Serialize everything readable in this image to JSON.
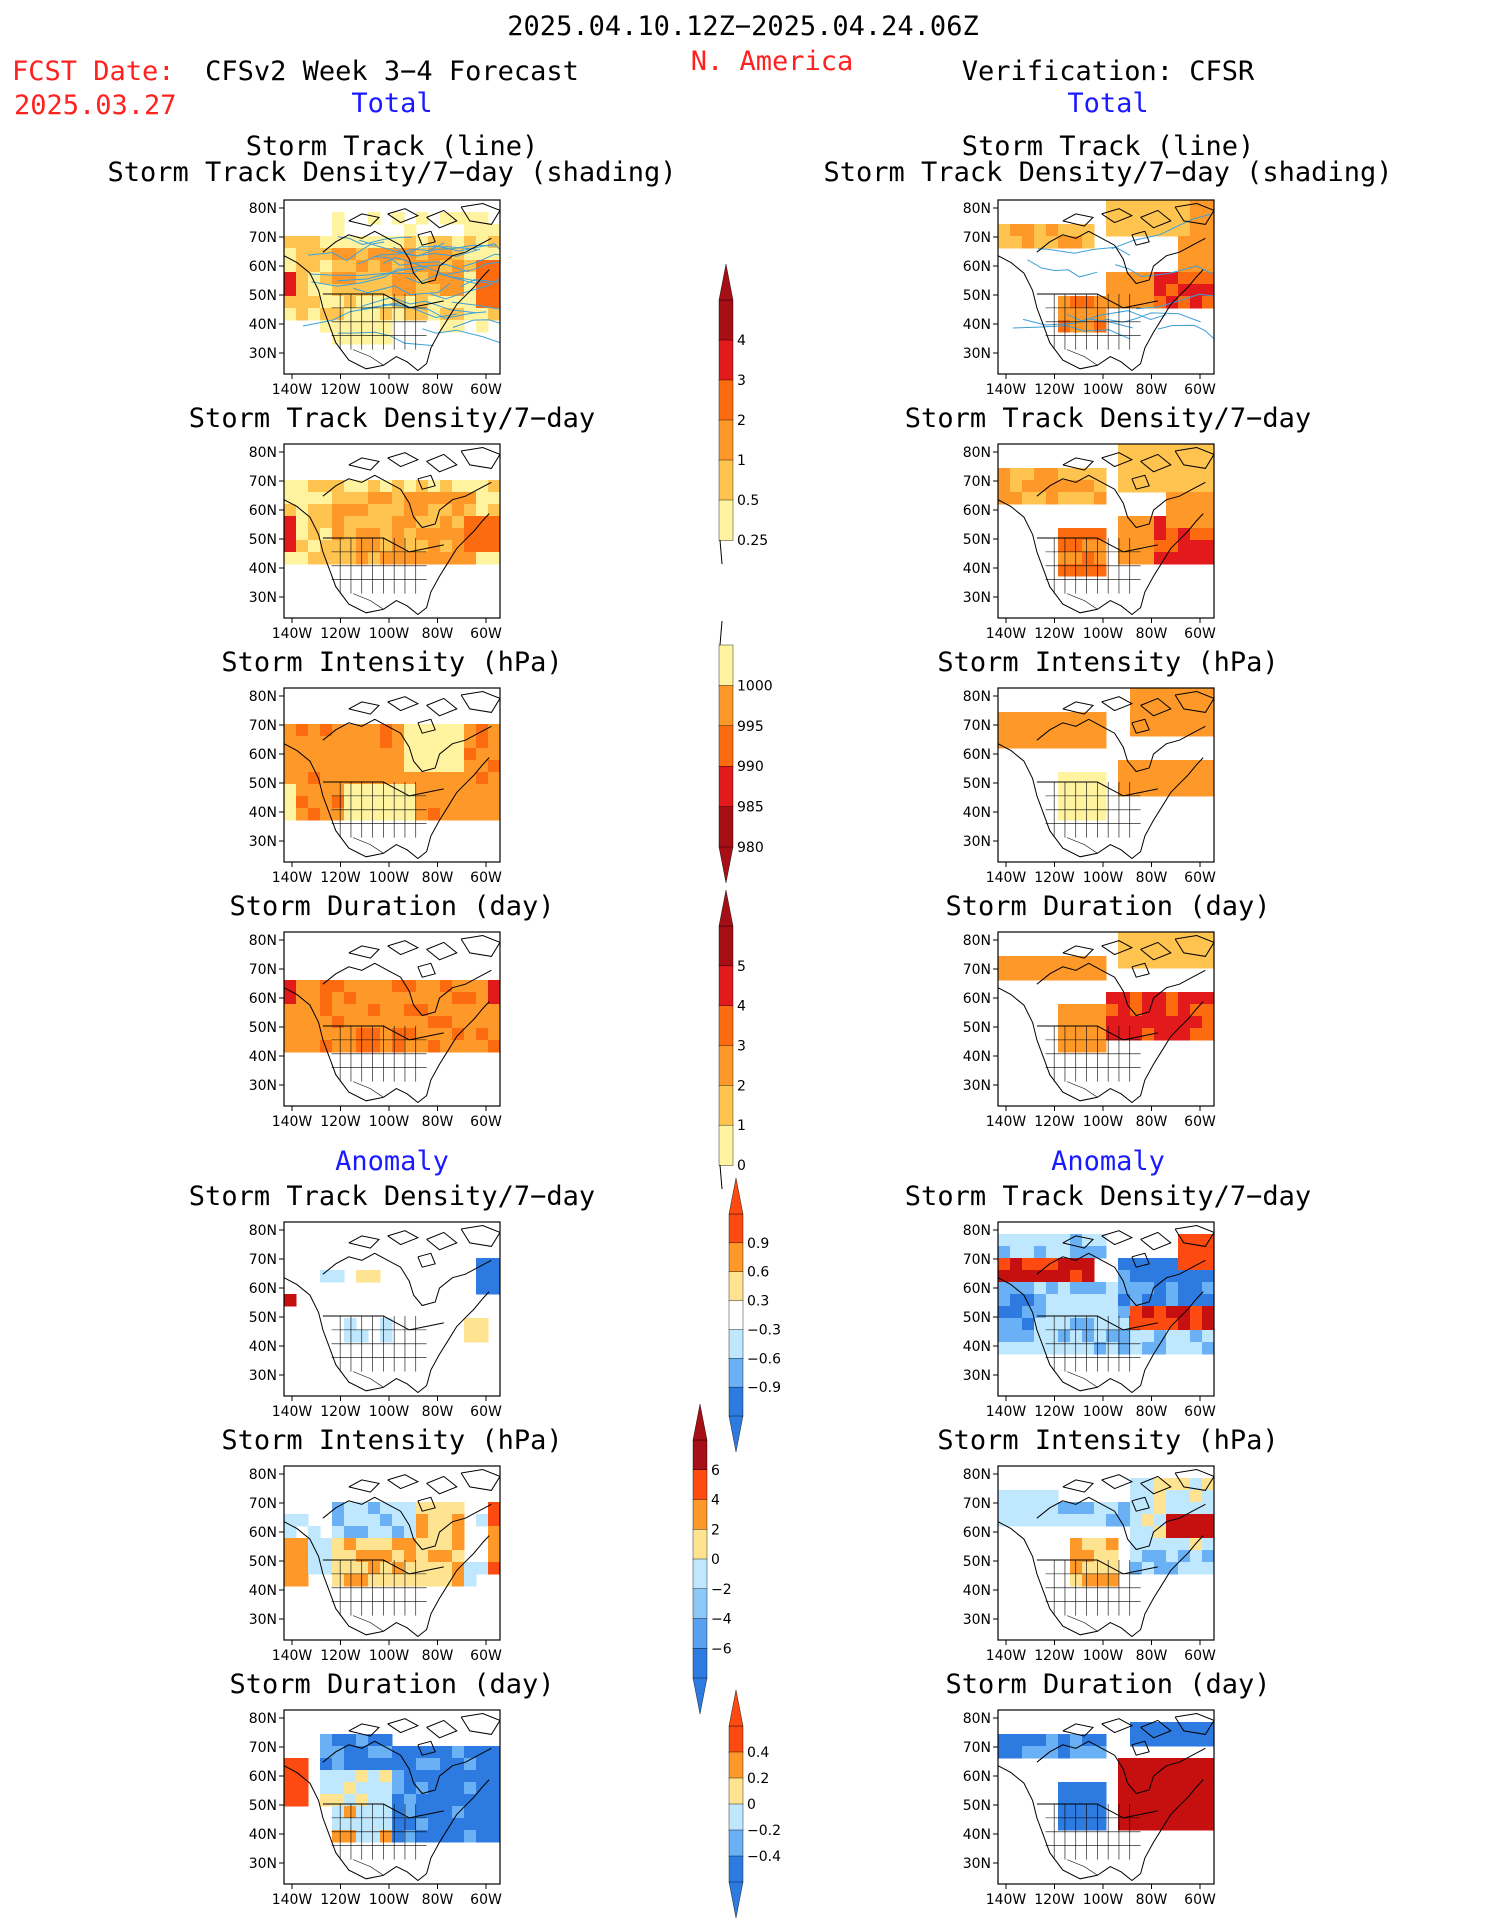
{
  "header": {
    "period": "2025.04.10.12Z−2025.04.24.06Z",
    "region": "N. America",
    "fcst_label": "FCST Date:",
    "fcst_date": "2025.03.27",
    "left_title": "CFSv2 Week 3−4 Forecast",
    "right_title": "Verification: CFSR",
    "left_total": "Total",
    "right_total": "Total",
    "left_anomaly": "Anomaly",
    "right_anomaly": "Anomaly"
  },
  "axes": {
    "lat_labels": [
      "80N",
      "70N",
      "60N",
      "50N",
      "40N",
      "30N"
    ],
    "lon_labels": [
      "140W",
      "120W",
      "100W",
      "80W",
      "60W"
    ]
  },
  "panels": {
    "left": [
      {
        "title1": "Storm Track (line)",
        "title2": "Storm Track Density/7−day (shading)"
      },
      {
        "title1": "Storm Track Density/7−day"
      },
      {
        "title1": "Storm Intensity (hPa)"
      },
      {
        "title1": "Storm Duration (day)"
      },
      {
        "title1": "Storm Track Density/7−day"
      },
      {
        "title1": "Storm Intensity (hPa)"
      },
      {
        "title1": "Storm Duration (day)"
      }
    ],
    "right": [
      {
        "title1": "Storm Track (line)",
        "title2": "Storm Track Density/7−day (shading)"
      },
      {
        "title1": "Storm Track Density/7−day"
      },
      {
        "title1": "Storm Intensity (hPa)"
      },
      {
        "title1": "Storm Duration (day)"
      },
      {
        "title1": "Storm Track Density/7−day"
      },
      {
        "title1": "Storm Intensity (hPa)"
      },
      {
        "title1": "Storm Duration (day)"
      }
    ]
  },
  "colorbars": [
    {
      "labels": [
        "4",
        "3",
        "2",
        "1",
        "0.5",
        "0.25"
      ],
      "colors": [
        "#a50f15",
        "#e31a1c",
        "#fd6b10",
        "#fe9929",
        "#fec44f",
        "#fff3a0"
      ]
    },
    {
      "labels": [
        "1000",
        "995",
        "990",
        "985",
        "980"
      ],
      "colors": [
        "#fff3a0",
        "#fe9929",
        "#fd6b10",
        "#e31a1c",
        "#a50f15"
      ]
    },
    {
      "labels": [
        "5",
        "4",
        "3",
        "2",
        "1",
        "0"
      ],
      "colors": [
        "#a50f15",
        "#e31a1c",
        "#fd6b10",
        "#fe9929",
        "#fec44f",
        "#fff3a0"
      ]
    },
    {
      "labels": [
        "0.9",
        "0.6",
        "0.3",
        "−0.3",
        "−0.6",
        "−0.9"
      ],
      "colors": [
        "#fd4a10",
        "#fe9929",
        "#fee391",
        "#ffffff",
        "#bfe8ff",
        "#6ab0f5",
        "#2d7ae0"
      ]
    },
    {
      "labels": [
        "6",
        "4",
        "2",
        "0",
        "−2",
        "−4",
        "−6"
      ],
      "colors": [
        "#a50f15",
        "#fd4a10",
        "#fe9929",
        "#fee391",
        "#bfe8ff",
        "#8cc8f8",
        "#5aa0f0",
        "#2d7ae0"
      ]
    },
    {
      "labels": [
        "0.4",
        "0.2",
        "0",
        "−0.2",
        "−0.4"
      ],
      "colors": [
        "#fd4a10",
        "#fe9929",
        "#fee391",
        "#bfe8ff",
        "#6ab0f5",
        "#2d7ae0"
      ]
    }
  ],
  "colors": {
    "title_red": "#ff2020",
    "title_blue": "#1a1aff",
    "track_line": "#3ea0d8"
  }
}
